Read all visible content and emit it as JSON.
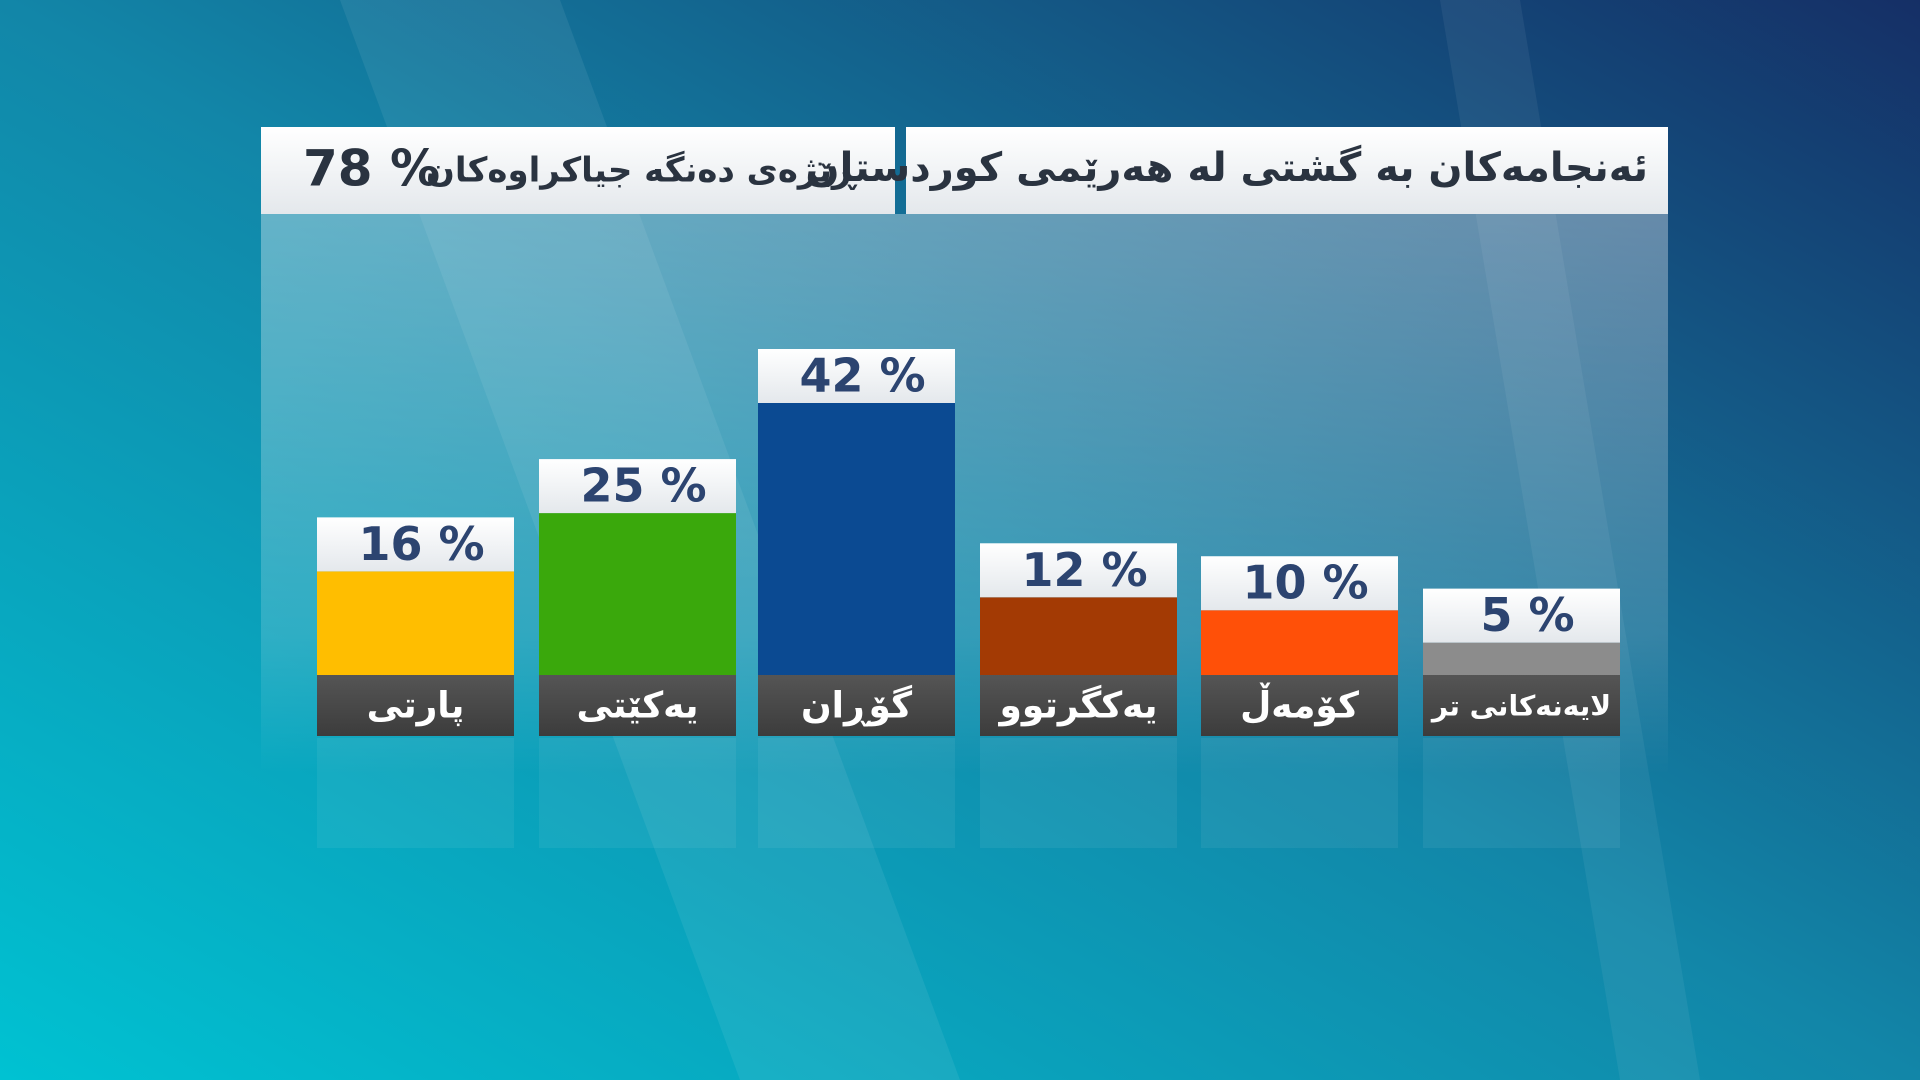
{
  "chart_data": {
    "type": "bar",
    "title": "ئەنجامەکان بە گشتی لە هەرێمی کوردستان",
    "subtitle": "ڕێژەی دەنگە جیاکراوەکان",
    "subtitle_value": {
      "value": 78,
      "label": "78 %"
    },
    "categories": [
      "پارتی",
      "یەکێتی",
      "گۆڕان",
      "یەکگرتوو",
      "کۆمەڵ",
      "لایەنەکانی تر"
    ],
    "values": [
      16,
      25,
      42,
      12,
      10,
      5
    ],
    "value_labels": [
      "16 %",
      "25 %",
      "42 %",
      "12 %",
      "10 %",
      "5 %"
    ],
    "colors": [
      "#ffbe00",
      "#3aa80c",
      "#0b4a92",
      "#a33a04",
      "#ff5008",
      "#8c8c8c"
    ]
  }
}
